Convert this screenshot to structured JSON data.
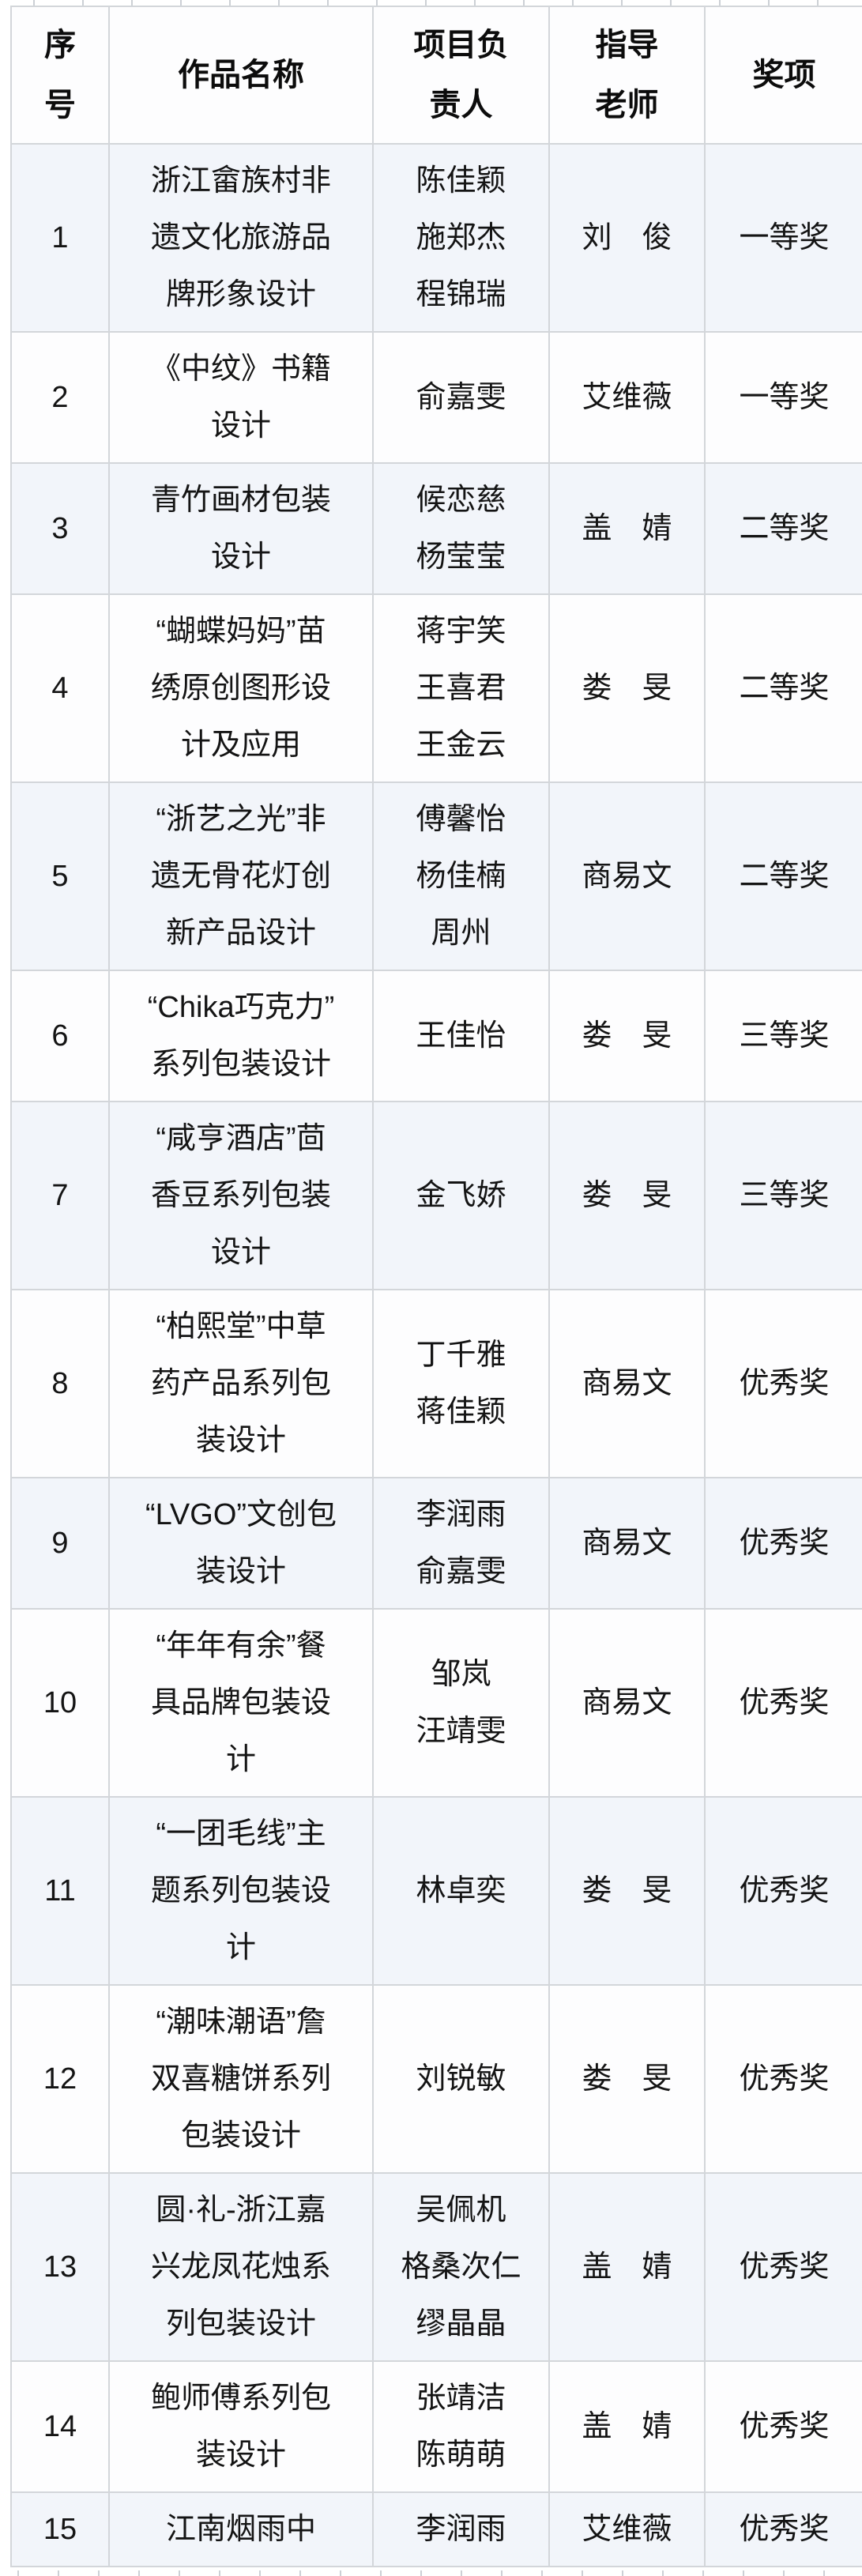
{
  "table": {
    "headers": [
      "序\n号",
      "作品名称",
      "项目负\n责人",
      "指导\n老师",
      "奖项"
    ],
    "rows": [
      {
        "no": "1",
        "title": "浙江畲族村非\n遗文化旅游品\n牌形象设计",
        "leaders": "陈佳颖\n施郑杰\n程锦瑞",
        "teacher": "刘　俊",
        "award": "一等奖"
      },
      {
        "no": "2",
        "title": "《中纹》书籍\n设计",
        "leaders": "俞嘉雯",
        "teacher": "艾维薇",
        "award": "一等奖"
      },
      {
        "no": "3",
        "title": "青竹画材包装\n设计",
        "leaders": "候恋慈\n杨莹莹",
        "teacher": "盖　婧",
        "award": "二等奖"
      },
      {
        "no": "4",
        "title": "“蝴蝶妈妈”苗\n绣原创图形设\n计及应用",
        "leaders": "蒋宇笑\n王喜君\n王金云",
        "teacher": "娄　旻",
        "award": "二等奖"
      },
      {
        "no": "5",
        "title": "“浙艺之光”非\n遗无骨花灯创\n新产品设计",
        "leaders": "傅馨怡\n杨佳楠\n周州",
        "teacher": "商易文",
        "award": "二等奖"
      },
      {
        "no": "6",
        "title": "“Chika巧克力”\n系列包装设计",
        "leaders": "王佳怡",
        "teacher": "娄　旻",
        "award": "三等奖"
      },
      {
        "no": "7",
        "title": "“咸亨酒店”茴\n香豆系列包装\n设计",
        "leaders": "金飞娇",
        "teacher": "娄　旻",
        "award": "三等奖"
      },
      {
        "no": "8",
        "title": "“柏熙堂”中草\n药产品系列包\n装设计",
        "leaders": "丁千雅\n蒋佳颖",
        "teacher": "商易文",
        "award": "优秀奖"
      },
      {
        "no": "9",
        "title": "“LVGO”文创包\n装设计",
        "leaders": "李润雨\n俞嘉雯",
        "teacher": "商易文",
        "award": "优秀奖"
      },
      {
        "no": "10",
        "title": "“年年有余”餐\n具品牌包装设\n计",
        "leaders": "邹岚\n汪靖雯",
        "teacher": "商易文",
        "award": "优秀奖"
      },
      {
        "no": "11",
        "title": "“一团毛线”主\n题系列包装设\n计",
        "leaders": "林卓奕",
        "teacher": "娄　旻",
        "award": "优秀奖"
      },
      {
        "no": "12",
        "title": "“潮味潮语”詹\n双喜糖饼系列\n包装设计",
        "leaders": "刘锐敏",
        "teacher": "娄　旻",
        "award": "优秀奖"
      },
      {
        "no": "13",
        "title": "圆·礼-浙江嘉\n兴龙凤花烛系\n列包装设计",
        "leaders": "吴佩机\n格桑次仁\n缪晶晶",
        "teacher": "盖　婧",
        "award": "优秀奖"
      },
      {
        "no": "14",
        "title": "鲍师傅系列包\n装设计",
        "leaders": "张靖洁\n陈萌萌",
        "teacher": "盖　婧",
        "award": "优秀奖"
      },
      {
        "no": "15",
        "title": "江南烟雨中",
        "leaders": "李润雨",
        "teacher": "艾维薇",
        "award": "优秀奖"
      }
    ]
  },
  "colors": {
    "row_alt_blue": "#f2f5fa",
    "row_white": "#fdfdfe",
    "grid_line": "#d3d6da",
    "text": "#141414"
  }
}
